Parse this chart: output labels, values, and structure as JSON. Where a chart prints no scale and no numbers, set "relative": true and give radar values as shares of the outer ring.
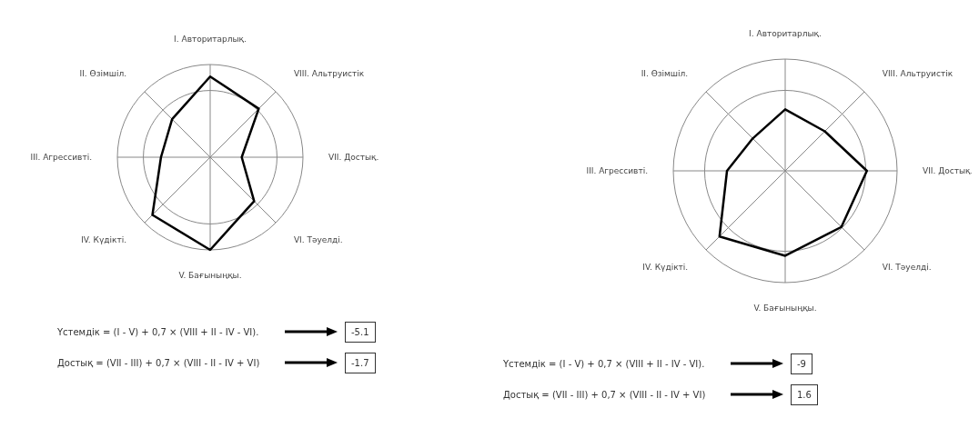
{
  "chart_data": [
    {
      "type": "radar",
      "categories": [
        "I. Авторитарлық.",
        "VIII. Альтруистік",
        "VII. Достық.",
        "VI. Тәуелді.",
        "V. Бағыныңқы.",
        "IV. Күдікті.",
        "III. Агрессивті.",
        "II. Өзімшіл."
      ],
      "relative": true,
      "grid": true,
      "marker": "none",
      "series": [
        {
          "color": "#000000",
          "values": [
            0.87,
            0.74,
            0.34,
            0.67,
            1.0,
            0.88,
            0.53,
            0.58
          ]
        }
      ],
      "annotations": [
        "Үстемдік = (I - V) + 0,7 × (VIII + II - IV - VI).",
        "-5.1",
        "Достық = (VII - III) + 0,7 × (VIII - II - IV + VI)",
        "-1.7"
      ]
    },
    {
      "type": "radar",
      "categories": [
        "I. Авторитарлық.",
        "VIII. Альтруистік",
        "VII. Достық.",
        "VI. Тәуелді.",
        "V. Бағыныңқы.",
        "IV. Күдікті.",
        "III. Агрессивті.",
        "II. Өзімшіл."
      ],
      "relative": true,
      "grid": true,
      "marker": "none",
      "series": [
        {
          "color": "#000000",
          "values": [
            0.55,
            0.5,
            0.73,
            0.71,
            0.76,
            0.83,
            0.52,
            0.41
          ]
        }
      ],
      "annotations": [
        "Үстемдік = (I - V) + 0,7 × (VIII + II - IV - VI).",
        "-9",
        "Достық = (VII - III) + 0,7 × (VIII - II - IV + VI)",
        "1.6"
      ]
    }
  ]
}
